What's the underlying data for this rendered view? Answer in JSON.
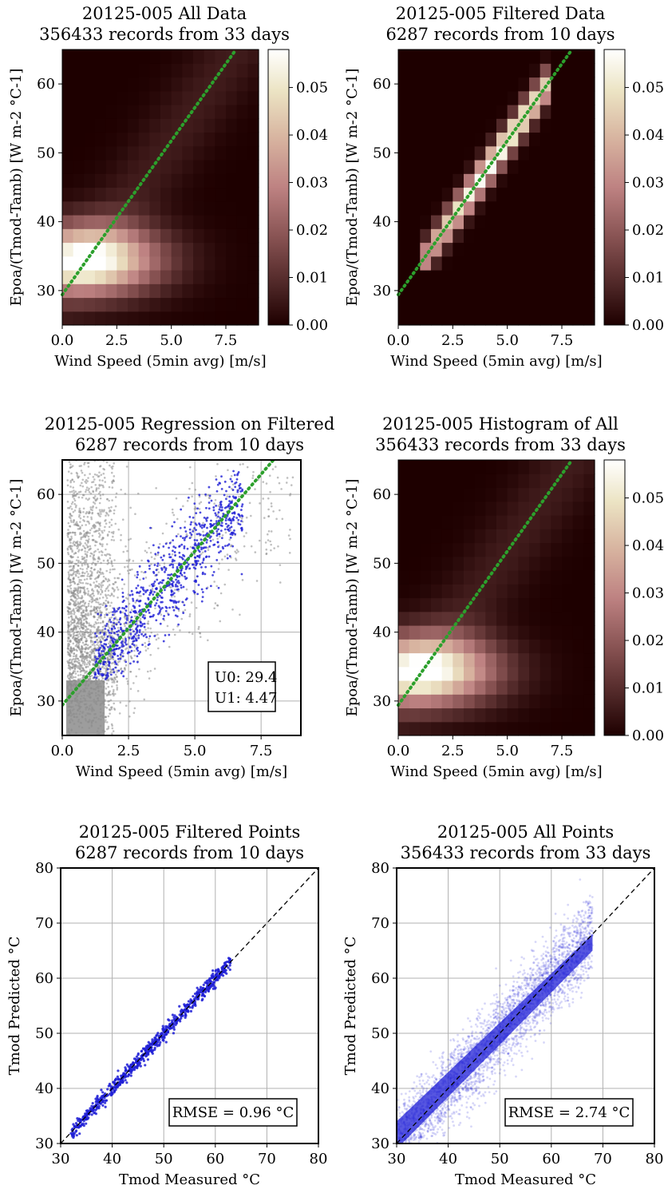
{
  "figure": {
    "background": "#ffffff"
  },
  "chart_data": [
    {
      "type": "heatmap",
      "title": [
        "20125-005 All Data",
        "356433 records from 33 days"
      ],
      "xlabel": "Wind Speed (5min avg) [m/s]",
      "ylabel": "Epoa/(Tmod-Tamb) [W m-2 °C-1]",
      "xlim": [
        0,
        9
      ],
      "ylim": [
        25,
        65
      ],
      "xticks": [
        "0.0",
        "2.5",
        "5.0",
        "7.5"
      ],
      "yticks": [
        "30",
        "40",
        "50",
        "60"
      ],
      "colorbar": {
        "ticks": [
          "0.00",
          "0.01",
          "0.02",
          "0.03",
          "0.04",
          "0.05"
        ],
        "range": [
          0,
          0.058
        ]
      },
      "fit_line": {
        "U0": 29.4,
        "U1": 4.47,
        "color": "#2ca02c",
        "style": "dotted"
      },
      "density": {
        "center_x": 1.1,
        "center_y": 34.5,
        "peak": 0.058,
        "sigma_major": 2.2,
        "sigma_minor": 0.7,
        "tail": 0.006
      }
    },
    {
      "type": "heatmap",
      "title": [
        "20125-005 Filtered Data",
        "6287 records from 10 days"
      ],
      "xlabel": "Wind Speed (5min avg) [m/s]",
      "ylabel": "Epoa/(Tmod-Tamb) [W m-2 °C-1]",
      "xlim": [
        0,
        9
      ],
      "ylim": [
        25,
        65
      ],
      "xticks": [
        "0.0",
        "2.5",
        "5.0",
        "7.5"
      ],
      "yticks": [
        "30",
        "40",
        "50",
        "60"
      ],
      "colorbar": {
        "ticks": [
          "0.00",
          "0.01",
          "0.02",
          "0.03",
          "0.04",
          "0.05"
        ],
        "range": [
          0,
          0.058
        ]
      },
      "fit_line": {
        "U0": 29.4,
        "U1": 4.47,
        "color": "#2ca02c",
        "style": "dotted"
      },
      "density": {
        "center_x": 4.5,
        "center_y": 50,
        "peak": 0.058,
        "sigma_major": 3.2,
        "sigma_minor": 0.35,
        "tail": 0,
        "xmin": 1.0,
        "xmax": 6.8,
        "ymin": 33,
        "ymax": 64
      }
    },
    {
      "type": "scatter",
      "title": [
        "20125-005 Regression on Filtered",
        "6287 records from 10 days"
      ],
      "xlabel": "Wind Speed (5min avg) [m/s]",
      "ylabel": "Epoa/(Tmod-Tamb) [W m-2 °C-1]",
      "xlim": [
        0,
        9
      ],
      "ylim": [
        25,
        65
      ],
      "xticks": [
        "0.0",
        "2.5",
        "5.0",
        "7.5"
      ],
      "yticks": [
        "30",
        "40",
        "50",
        "60"
      ],
      "grid": true,
      "series": [
        {
          "name": "all",
          "color": "#8c8c8c"
        },
        {
          "name": "filtered",
          "color": "#1f1fd6"
        }
      ],
      "fit_line": {
        "U0": 29.4,
        "U1": 4.47,
        "color": "#2ca02c",
        "style": "dotted"
      },
      "annotation": [
        "U0: 29.4",
        "U1: 4.47"
      ]
    },
    {
      "type": "heatmap",
      "title": [
        "20125-005 Histogram of All",
        "356433 records from 33 days"
      ],
      "xlabel": "Wind Speed (5min avg) [m/s]",
      "ylabel": "Epoa/(Tmod-Tamb) [W m-2 °C-1]",
      "xlim": [
        0,
        9
      ],
      "ylim": [
        25,
        65
      ],
      "xticks": [
        "0.0",
        "2.5",
        "5.0",
        "7.5"
      ],
      "yticks": [
        "30",
        "40",
        "50",
        "60"
      ],
      "colorbar": {
        "ticks": [
          "0.00",
          "0.01",
          "0.02",
          "0.03",
          "0.04",
          "0.05"
        ],
        "range": [
          0,
          0.058
        ]
      },
      "fit_line": {
        "U0": 29.4,
        "U1": 4.47,
        "color": "#2ca02c",
        "style": "dotted"
      },
      "density": {
        "center_x": 1.1,
        "center_y": 34.5,
        "peak": 0.058,
        "sigma_major": 2.2,
        "sigma_minor": 0.7,
        "tail": 0.006
      }
    },
    {
      "type": "scatter",
      "title": [
        "20125-005 Filtered Points",
        "6287 records from 10 days"
      ],
      "xlabel": "Tmod Measured °C",
      "ylabel": "Tmod Predicted °C",
      "xlim": [
        30,
        80
      ],
      "ylim": [
        30,
        80
      ],
      "xticks": [
        "30",
        "40",
        "50",
        "60",
        "70",
        "80"
      ],
      "yticks": [
        "30",
        "40",
        "50",
        "60",
        "70",
        "80"
      ],
      "grid": true,
      "series": [
        {
          "name": "filtered",
          "color": "#1f1fd6",
          "x_range": [
            32,
            63
          ],
          "spread": 0.96
        }
      ],
      "identity_line": true,
      "annotation": "RMSE = 0.96 °C"
    },
    {
      "type": "scatter",
      "title": [
        "20125-005 All Points",
        "356433 records from 33 days"
      ],
      "xlabel": "Tmod Measured °C",
      "ylabel": "Tmod Predicted °C",
      "xlim": [
        30,
        80
      ],
      "ylim": [
        30,
        80
      ],
      "xticks": [
        "30",
        "40",
        "50",
        "60",
        "70",
        "80"
      ],
      "yticks": [
        "30",
        "40",
        "50",
        "60",
        "70",
        "80"
      ],
      "grid": true,
      "series": [
        {
          "name": "all",
          "color": "#1f1fd6",
          "x_range": [
            30,
            68
          ],
          "spread": 2.74
        }
      ],
      "identity_line": true,
      "annotation": "RMSE = 2.74 °C"
    }
  ]
}
